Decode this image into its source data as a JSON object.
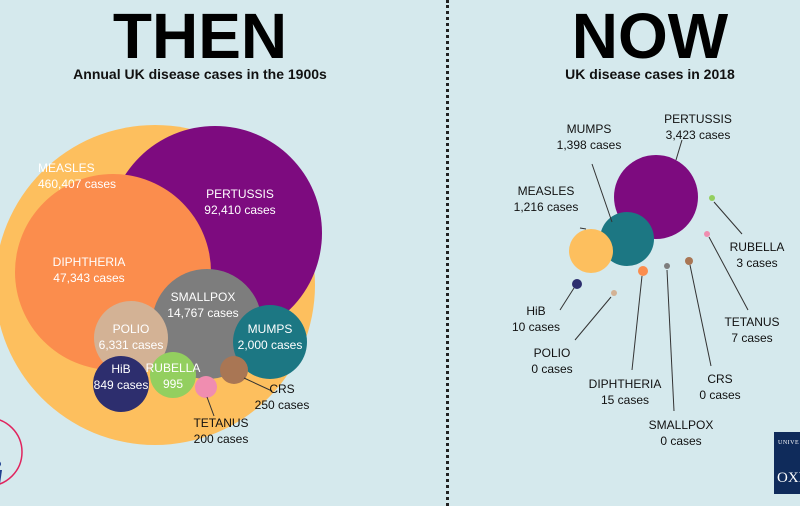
{
  "header": {
    "then_title": "THEN",
    "then_subtitle": "Annual UK disease cases in the 1900s",
    "now_title": "NOW",
    "now_subtitle": "UK disease cases in 2018"
  },
  "logos": {
    "left_text": "vaccine group",
    "right_text_top": "UNIVE",
    "right_text_bottom": "OXF"
  },
  "chart_data": [
    {
      "type": "bubble",
      "title": "Annual UK disease cases in the 1900s",
      "series": [
        {
          "name": "MEASLES",
          "value": 460407,
          "value_label": "460,407 cases",
          "color": "#fdbf5e"
        },
        {
          "name": "PERTUSSIS",
          "value": 92410,
          "value_label": "92,410 cases",
          "color": "#7d0b7f"
        },
        {
          "name": "DIPHTHERIA",
          "value": 47343,
          "value_label": "47,343 cases",
          "color": "#fb8d4d"
        },
        {
          "name": "SMALLPOX",
          "value": 14767,
          "value_label": "14,767 cases",
          "color": "#7d7d7d"
        },
        {
          "name": "POLIO",
          "value": 6331,
          "value_label": "6,331 cases",
          "color": "#d3b295"
        },
        {
          "name": "MUMPS",
          "value": 2000,
          "value_label": "2,000 cases",
          "color": "#1c7783"
        },
        {
          "name": "RUBELLA",
          "value": 995,
          "value_label": "995",
          "color": "#93cf5f"
        },
        {
          "name": "HiB",
          "value": 849,
          "value_label": "849 cases",
          "color": "#2d2e6e"
        },
        {
          "name": "CRS",
          "value": 250,
          "value_label": "250 cases",
          "color": "#a97654"
        },
        {
          "name": "TETANUS",
          "value": 200,
          "value_label": "200 cases",
          "color": "#f08db0"
        }
      ]
    },
    {
      "type": "bubble",
      "title": "UK disease cases in 2018",
      "series": [
        {
          "name": "PERTUSSIS",
          "value": 3423,
          "value_label": "3,423 cases",
          "color": "#7d0b7f"
        },
        {
          "name": "MUMPS",
          "value": 1398,
          "value_label": "1,398 cases",
          "color": "#1c7783"
        },
        {
          "name": "MEASLES",
          "value": 1216,
          "value_label": "1,216 cases",
          "color": "#fdbf5e"
        },
        {
          "name": "HiB",
          "value": 10,
          "value_label": "10 cases",
          "color": "#2d2e6e"
        },
        {
          "name": "POLIO",
          "value": 0,
          "value_label": "0 cases",
          "color": "#d3b295"
        },
        {
          "name": "DIPHTHERIA",
          "value": 15,
          "value_label": "15 cases",
          "color": "#fb8d4d"
        },
        {
          "name": "SMALLPOX",
          "value": 0,
          "value_label": "0 cases",
          "color": "#7d7d7d"
        },
        {
          "name": "CRS",
          "value": 0,
          "value_label": "0 cases",
          "color": "#a97654"
        },
        {
          "name": "TETANUS",
          "value": 7,
          "value_label": "7 cases",
          "color": "#f08db0"
        },
        {
          "name": "RUBELLA",
          "value": 3,
          "value_label": "3 cases",
          "color": "#93cf5f"
        }
      ]
    }
  ]
}
